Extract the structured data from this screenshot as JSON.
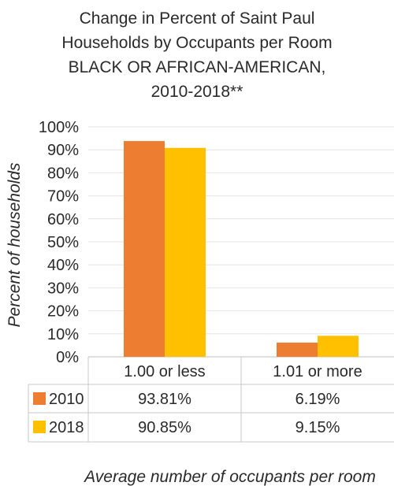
{
  "chart_data": {
    "type": "bar",
    "title_lines": [
      "Change in Percent of Saint Paul",
      "Households by Occupants per Room",
      "BLACK OR AFRICAN-AMERICAN,",
      "2010-2018**"
    ],
    "categories": [
      "1.00 or less",
      "1.01 or more"
    ],
    "series": [
      {
        "name": "2010",
        "values": [
          93.81,
          6.19
        ],
        "labels": [
          "93.81%",
          "6.19%"
        ],
        "color": "#ED7D31"
      },
      {
        "name": "2018",
        "values": [
          90.85,
          9.15
        ],
        "labels": [
          "90.85%",
          "9.15%"
        ],
        "color": "#FFC000"
      }
    ],
    "xlabel": "Average number of occupants per room",
    "ylabel": "Percent of households",
    "ylim": [
      0,
      100
    ],
    "yticks": [
      "0%",
      "10%",
      "20%",
      "30%",
      "40%",
      "50%",
      "60%",
      "70%",
      "80%",
      "90%",
      "100%"
    ],
    "grid": true,
    "legend": "data-table"
  }
}
